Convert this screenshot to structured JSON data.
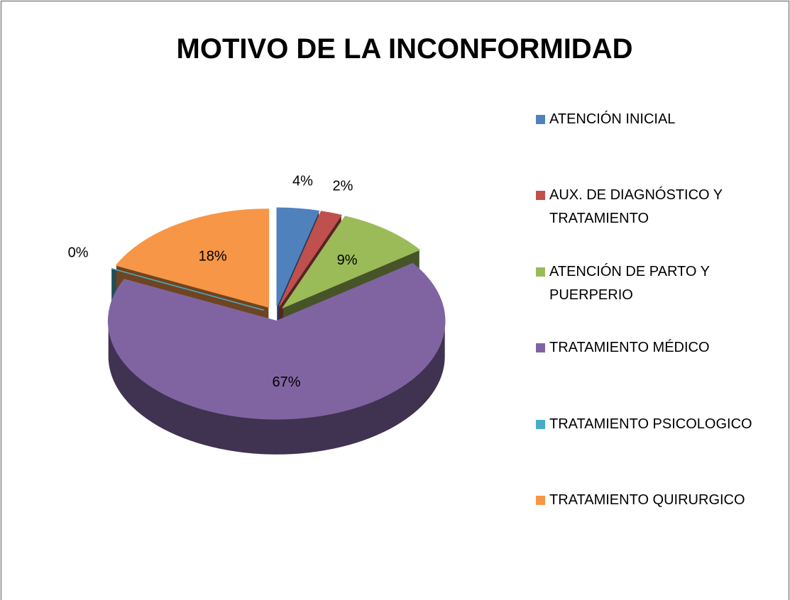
{
  "chart_data": {
    "type": "pie",
    "title": "MOTIVO DE LA INCONFORMIDAD",
    "categories": [
      "ATENCIÓN INICIAL",
      "AUX. DE DIAGNÓSTICO Y TRATAMIENTO",
      "ATENCIÓN DE PARTO Y PUERPERIO",
      "TRATAMIENTO MÉDICO",
      "TRATAMIENTO PSICOLOGICO",
      "TRATAMIENTO QUIRURGICO"
    ],
    "values": [
      4,
      2,
      9,
      67,
      0,
      18
    ],
    "value_labels": [
      "4%",
      "2%",
      "9%",
      "67%",
      "0%",
      "18%"
    ],
    "colors": [
      "#4f81bd",
      "#c0504d",
      "#9bbb59",
      "#8064a2",
      "#4bacc6",
      "#f79646"
    ],
    "legend": "right"
  }
}
